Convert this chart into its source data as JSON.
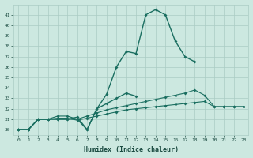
{
  "xlabel": "Humidex (Indice chaleur)",
  "ylim": [
    29.5,
    42.0
  ],
  "xlim": [
    -0.5,
    23.5
  ],
  "yticks": [
    30,
    31,
    32,
    33,
    34,
    35,
    36,
    37,
    38,
    39,
    40,
    41
  ],
  "xticks": [
    0,
    1,
    2,
    3,
    4,
    5,
    6,
    7,
    8,
    9,
    10,
    11,
    12,
    13,
    14,
    15,
    16,
    17,
    18,
    19,
    20,
    21,
    22,
    23
  ],
  "background_color": "#cce8e0",
  "grid_color": "#aaccC4",
  "line_color": "#1a6e60",
  "text_color": "#1a4a40",
  "series1_x": [
    0,
    1,
    2,
    3,
    4,
    5,
    6,
    7,
    8,
    9,
    10,
    11,
    12,
    13,
    14,
    15,
    16,
    17,
    18
  ],
  "series1_y": [
    30,
    30,
    31,
    31,
    31,
    31,
    31,
    30,
    32,
    33.4,
    36.0,
    37.5,
    37.3,
    41.0,
    41.5,
    41.0,
    38.5,
    37.0,
    36.5
  ],
  "series2_x": [
    0,
    1,
    2,
    3,
    4,
    5,
    6,
    7,
    8,
    9,
    10,
    11,
    12
  ],
  "series2_y": [
    30,
    30,
    31,
    31,
    31,
    31,
    31.2,
    30,
    32,
    32.5,
    33.0,
    33.5,
    33.2
  ],
  "series3_x": [
    0,
    1,
    2,
    3,
    4,
    5,
    6,
    7,
    8,
    9,
    10,
    11,
    12,
    13,
    14,
    15,
    16,
    17,
    18,
    19,
    20,
    21,
    22,
    23
  ],
  "series3_y": [
    30,
    30,
    31,
    31,
    31.3,
    31.3,
    31.0,
    31.3,
    31.6,
    31.9,
    32.1,
    32.3,
    32.5,
    32.7,
    32.9,
    33.1,
    33.3,
    33.5,
    33.8,
    33.3,
    32.2,
    32.2,
    32.2,
    32.2
  ],
  "series4_x": [
    0,
    1,
    2,
    3,
    4,
    5,
    6,
    7,
    8,
    9,
    10,
    11,
    12,
    13,
    14,
    15,
    16,
    17,
    18,
    19,
    20,
    21,
    22,
    23
  ],
  "series4_y": [
    30,
    30,
    31,
    31,
    31.1,
    31.1,
    30.9,
    31.1,
    31.3,
    31.5,
    31.7,
    31.9,
    32.0,
    32.1,
    32.2,
    32.3,
    32.4,
    32.5,
    32.6,
    32.7,
    32.2,
    32.2,
    32.2,
    32.2
  ]
}
